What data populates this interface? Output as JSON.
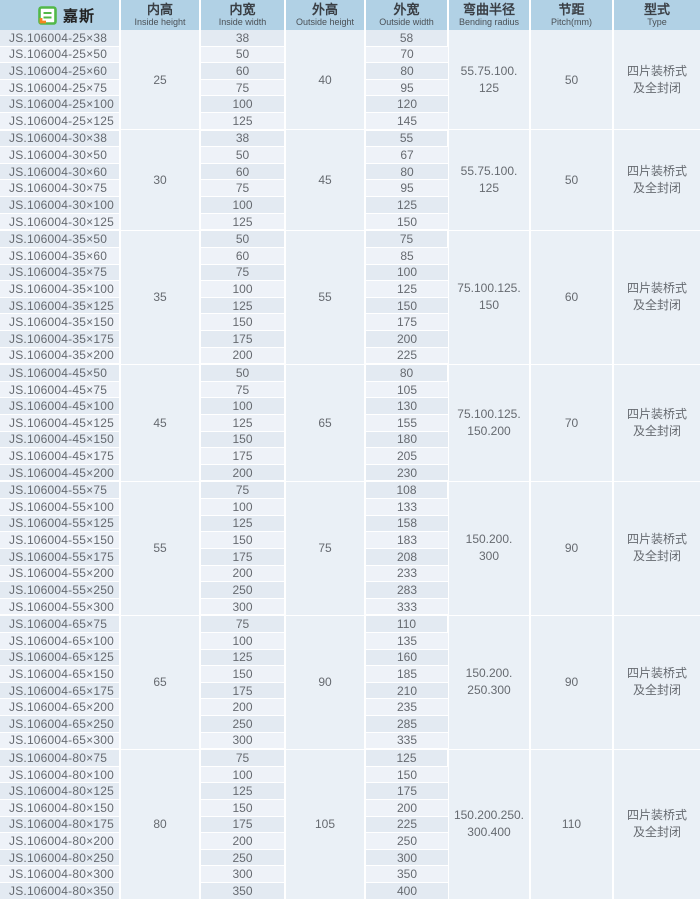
{
  "brand": {
    "name": "嘉斯",
    "logo_icon": "jiasi-logo"
  },
  "colors": {
    "header_bg": "#b1d1e5",
    "row_dark": "#e3eaf2",
    "row_light": "#eef2f8",
    "merged_bg": "#eaf0f6",
    "body_text": "#666a70",
    "logo_green": "#52b848",
    "logo_orange": "#f5851f"
  },
  "table": {
    "columns": [
      {
        "zh": "内高",
        "en": "Inside height"
      },
      {
        "zh": "内宽",
        "en": "Inside width"
      },
      {
        "zh": "外高",
        "en": "Outside height"
      },
      {
        "zh": "外宽",
        "en": "Outside width"
      },
      {
        "zh": "弯曲半径",
        "en": "Bending radius"
      },
      {
        "zh": "节距",
        "en": "Pitch(mm)"
      },
      {
        "zh": "型式",
        "en": "Type"
      }
    ],
    "groups": [
      {
        "inside_height": "25",
        "outside_height": "40",
        "bending_radius_line1": "55.75.100.",
        "bending_radius_line2": "125",
        "pitch": "50",
        "type_line1": "四片装桥式",
        "type_line2": "及全封闭",
        "rows": [
          {
            "model": "JS.106004-25×38",
            "inside_width": "38",
            "outside_width": "58"
          },
          {
            "model": "JS.106004-25×50",
            "inside_width": "50",
            "outside_width": "70"
          },
          {
            "model": "JS.106004-25×60",
            "inside_width": "60",
            "outside_width": "80"
          },
          {
            "model": "JS.106004-25×75",
            "inside_width": "75",
            "outside_width": "95"
          },
          {
            "model": "JS.106004-25×100",
            "inside_width": "100",
            "outside_width": "120"
          },
          {
            "model": "JS.106004-25×125",
            "inside_width": "125",
            "outside_width": "145"
          }
        ]
      },
      {
        "inside_height": "30",
        "outside_height": "45",
        "bending_radius_line1": "55.75.100.",
        "bending_radius_line2": "125",
        "pitch": "50",
        "type_line1": "四片装桥式",
        "type_line2": "及全封闭",
        "rows": [
          {
            "model": "JS.106004-30×38",
            "inside_width": "38",
            "outside_width": "55"
          },
          {
            "model": "JS.106004-30×50",
            "inside_width": "50",
            "outside_width": "67"
          },
          {
            "model": "JS.106004-30×60",
            "inside_width": "60",
            "outside_width": "80"
          },
          {
            "model": "JS.106004-30×75",
            "inside_width": "75",
            "outside_width": "95"
          },
          {
            "model": "JS.106004-30×100",
            "inside_width": "100",
            "outside_width": "125"
          },
          {
            "model": "JS.106004-30×125",
            "inside_width": "125",
            "outside_width": "150"
          }
        ]
      },
      {
        "inside_height": "35",
        "outside_height": "55",
        "bending_radius_line1": "75.100.125.",
        "bending_radius_line2": "150",
        "pitch": "60",
        "type_line1": "四片装桥式",
        "type_line2": "及全封闭",
        "rows": [
          {
            "model": "JS.106004-35×50",
            "inside_width": "50",
            "outside_width": "75"
          },
          {
            "model": "JS.106004-35×60",
            "inside_width": "60",
            "outside_width": "85"
          },
          {
            "model": "JS.106004-35×75",
            "inside_width": "75",
            "outside_width": "100"
          },
          {
            "model": "JS.106004-35×100",
            "inside_width": "100",
            "outside_width": "125"
          },
          {
            "model": "JS.106004-35×125",
            "inside_width": "125",
            "outside_width": "150"
          },
          {
            "model": "JS.106004-35×150",
            "inside_width": "150",
            "outside_width": "175"
          },
          {
            "model": "JS.106004-35×175",
            "inside_width": "175",
            "outside_width": "200"
          },
          {
            "model": "JS.106004-35×200",
            "inside_width": "200",
            "outside_width": "225"
          }
        ]
      },
      {
        "inside_height": "45",
        "outside_height": "65",
        "bending_radius_line1": "75.100.125.",
        "bending_radius_line2": "150.200",
        "pitch": "70",
        "type_line1": "四片装桥式",
        "type_line2": "及全封闭",
        "rows": [
          {
            "model": "JS.106004-45×50",
            "inside_width": "50",
            "outside_width": "80"
          },
          {
            "model": "JS.106004-45×75",
            "inside_width": "75",
            "outside_width": "105"
          },
          {
            "model": "JS.106004-45×100",
            "inside_width": "100",
            "outside_width": "130"
          },
          {
            "model": "JS.106004-45×125",
            "inside_width": "125",
            "outside_width": "155"
          },
          {
            "model": "JS.106004-45×150",
            "inside_width": "150",
            "outside_width": "180"
          },
          {
            "model": "JS.106004-45×175",
            "inside_width": "175",
            "outside_width": "205"
          },
          {
            "model": "JS.106004-45×200",
            "inside_width": "200",
            "outside_width": "230"
          }
        ]
      },
      {
        "inside_height": "55",
        "outside_height": "75",
        "bending_radius_line1": "150.200.",
        "bending_radius_line2": "300",
        "pitch": "90",
        "type_line1": "四片装桥式",
        "type_line2": "及全封闭",
        "rows": [
          {
            "model": "JS.106004-55×75",
            "inside_width": "75",
            "outside_width": "108"
          },
          {
            "model": "JS.106004-55×100",
            "inside_width": "100",
            "outside_width": "133"
          },
          {
            "model": "JS.106004-55×125",
            "inside_width": "125",
            "outside_width": "158"
          },
          {
            "model": "JS.106004-55×150",
            "inside_width": "150",
            "outside_width": "183"
          },
          {
            "model": "JS.106004-55×175",
            "inside_width": "175",
            "outside_width": "208"
          },
          {
            "model": "JS.106004-55×200",
            "inside_width": "200",
            "outside_width": "233"
          },
          {
            "model": "JS.106004-55×250",
            "inside_width": "250",
            "outside_width": "283"
          },
          {
            "model": "JS.106004-55×300",
            "inside_width": "300",
            "outside_width": "333"
          }
        ]
      },
      {
        "inside_height": "65",
        "outside_height": "90",
        "bending_radius_line1": "150.200.",
        "bending_radius_line2": "250.300",
        "pitch": "90",
        "type_line1": "四片装桥式",
        "type_line2": "及全封闭",
        "rows": [
          {
            "model": "JS.106004-65×75",
            "inside_width": "75",
            "outside_width": "110"
          },
          {
            "model": "JS.106004-65×100",
            "inside_width": "100",
            "outside_width": "135"
          },
          {
            "model": "JS.106004-65×125",
            "inside_width": "125",
            "outside_width": "160"
          },
          {
            "model": "JS.106004-65×150",
            "inside_width": "150",
            "outside_width": "185"
          },
          {
            "model": "JS.106004-65×175",
            "inside_width": "175",
            "outside_width": "210"
          },
          {
            "model": "JS.106004-65×200",
            "inside_width": "200",
            "outside_width": "235"
          },
          {
            "model": "JS.106004-65×250",
            "inside_width": "250",
            "outside_width": "285"
          },
          {
            "model": "JS.106004-65×300",
            "inside_width": "300",
            "outside_width": "335"
          }
        ]
      },
      {
        "inside_height": "80",
        "outside_height": "105",
        "bending_radius_line1": "150.200.250.",
        "bending_radius_line2": "300.400",
        "pitch": "110",
        "type_line1": "四片装桥式",
        "type_line2": "及全封闭",
        "rows": [
          {
            "model": "JS.106004-80×75",
            "inside_width": "75",
            "outside_width": "125"
          },
          {
            "model": "JS.106004-80×100",
            "inside_width": "100",
            "outside_width": "150"
          },
          {
            "model": "JS.106004-80×125",
            "inside_width": "125",
            "outside_width": "175"
          },
          {
            "model": "JS.106004-80×150",
            "inside_width": "150",
            "outside_width": "200"
          },
          {
            "model": "JS.106004-80×175",
            "inside_width": "175",
            "outside_width": "225"
          },
          {
            "model": "JS.106004-80×200",
            "inside_width": "200",
            "outside_width": "250"
          },
          {
            "model": "JS.106004-80×250",
            "inside_width": "250",
            "outside_width": "300"
          },
          {
            "model": "JS.106004-80×300",
            "inside_width": "300",
            "outside_width": "350"
          },
          {
            "model": "JS.106004-80×350",
            "inside_width": "350",
            "outside_width": "400"
          }
        ]
      }
    ]
  }
}
